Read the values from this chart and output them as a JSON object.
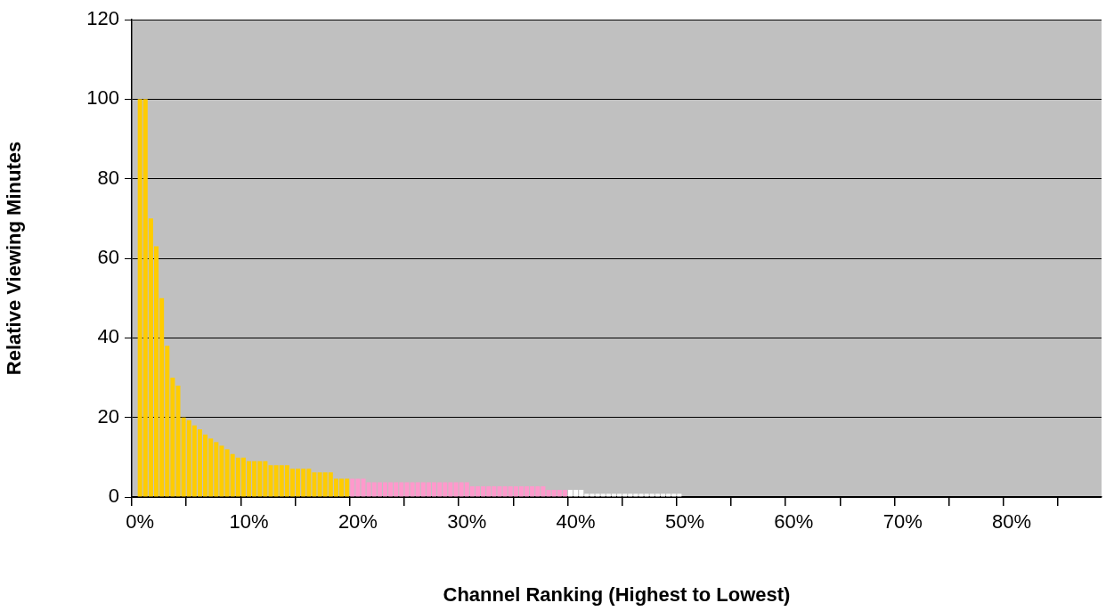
{
  "chart_data": {
    "type": "bar",
    "xlabel": "Channel Ranking (Highest to Lowest)",
    "ylabel": "Relative Viewing Minutes",
    "categories": [
      null,
      "0%",
      null,
      null,
      null,
      null,
      null,
      null,
      null,
      null,
      null,
      null,
      null,
      null,
      null,
      null,
      null,
      null,
      null,
      null,
      null,
      "10%",
      null,
      null,
      null,
      null,
      null,
      null,
      null,
      null,
      null,
      null,
      null,
      null,
      null,
      null,
      null,
      null,
      null,
      null,
      null,
      "20%",
      null,
      null,
      null,
      null,
      null,
      null,
      null,
      null,
      null,
      null,
      null,
      null,
      null,
      null,
      null,
      null,
      null,
      null,
      null,
      "30%",
      null,
      null,
      null,
      null,
      null,
      null,
      null,
      null,
      null,
      null,
      null,
      null,
      null,
      null,
      null,
      null,
      null,
      null,
      null,
      "40%",
      null,
      null,
      null,
      null,
      null,
      null,
      null,
      null,
      null,
      null,
      null,
      null,
      null,
      null,
      null,
      null,
      null,
      null,
      null,
      "50%",
      null,
      null,
      null,
      null,
      null,
      null,
      null,
      null,
      null,
      null,
      null,
      null,
      null,
      null,
      null,
      null,
      null,
      null,
      null,
      "60%",
      null,
      null,
      null,
      null,
      null,
      null,
      null,
      null,
      null,
      null,
      null,
      null,
      null,
      null,
      null,
      null,
      null,
      null,
      null,
      "70%",
      null,
      null,
      null,
      null,
      null,
      null,
      null,
      null,
      null,
      null,
      null,
      null,
      null,
      null,
      null,
      null,
      null,
      null,
      null,
      "80%",
      null,
      null,
      null,
      null,
      null,
      null,
      null,
      null,
      null,
      null,
      null,
      null,
      null,
      null,
      null,
      null
    ],
    "values": [
      null,
      100,
      100,
      70,
      63,
      50,
      38,
      30,
      28,
      20,
      19.3,
      18,
      17,
      15.7,
      14.7,
      13.8,
      12.9,
      12,
      10.8,
      9.9,
      9.9,
      9,
      9,
      9,
      9,
      8,
      8,
      8,
      8,
      7.1,
      7.1,
      7.1,
      7.1,
      6.2,
      6.2,
      6.2,
      6.2,
      4.6,
      4.6,
      4.6,
      4.6,
      4.6,
      4.6,
      3.7,
      3.7,
      3.7,
      3.7,
      3.7,
      3.7,
      3.7,
      3.7,
      3.7,
      3.7,
      3.7,
      3.7,
      3.7,
      3.7,
      3.7,
      3.7,
      3.7,
      3.7,
      3.7,
      2.7,
      2.7,
      2.7,
      2.7,
      2.7,
      2.7,
      2.7,
      2.7,
      2.7,
      2.7,
      2.7,
      2.7,
      2.7,
      2.7,
      1.8,
      1.8,
      1.8,
      1.8,
      1.8,
      1.8,
      1.8,
      0.8,
      0.8,
      0.8,
      0.8,
      0.8,
      0.8,
      0.8,
      0.8,
      0.8,
      0.8,
      0.8,
      0.8,
      0.8,
      0.8,
      0.8,
      0.8,
      0.8,
      0.8,
      null,
      null,
      null,
      null,
      null,
      null,
      null,
      null,
      null,
      null,
      null,
      null,
      null,
      null,
      null,
      null,
      null,
      null,
      null,
      null,
      null,
      null,
      null,
      null,
      null,
      null,
      null,
      null,
      null,
      null,
      null,
      null,
      null,
      null,
      null,
      null,
      null,
      null,
      null,
      null,
      null,
      null,
      null,
      null,
      null,
      null,
      null,
      null,
      null,
      null,
      null,
      null,
      null,
      null,
      null,
      null,
      null,
      null,
      null,
      null,
      null,
      null,
      null,
      null,
      null,
      null,
      null,
      null,
      null,
      null,
      null,
      null,
      null,
      null,
      null,
      null,
      null
    ],
    "colors": [
      null,
      "#ffcc00",
      "#ffcc00",
      "#ffcc00",
      "#ffcc00",
      "#ffcc00",
      "#ffcc00",
      "#ffcc00",
      "#ffcc00",
      "#ffcc00",
      "#ffcc00",
      "#ffcc00",
      "#ffcc00",
      "#ffcc00",
      "#ffcc00",
      "#ffcc00",
      "#ffcc00",
      "#ffcc00",
      "#ffcc00",
      "#ffcc00",
      "#ffcc00",
      "#ffcc00",
      "#ffcc00",
      "#ffcc00",
      "#ffcc00",
      "#ffcc00",
      "#ffcc00",
      "#ffcc00",
      "#ffcc00",
      "#ffcc00",
      "#ffcc00",
      "#ffcc00",
      "#ffcc00",
      "#ffcc00",
      "#ffcc00",
      "#ffcc00",
      "#ffcc00",
      "#ffcc00",
      "#ffcc00",
      "#ffcc00",
      "#ff99cc",
      "#ff99cc",
      "#ff99cc",
      "#ff99cc",
      "#ff99cc",
      "#ff99cc",
      "#ff99cc",
      "#ff99cc",
      "#ff99cc",
      "#ff99cc",
      "#ff99cc",
      "#ff99cc",
      "#ff99cc",
      "#ff99cc",
      "#ff99cc",
      "#ff99cc",
      "#ff99cc",
      "#ff99cc",
      "#ff99cc",
      "#ff99cc",
      "#ff99cc",
      "#ff99cc",
      "#ff99cc",
      "#ff99cc",
      "#ff99cc",
      "#ff99cc",
      "#ff99cc",
      "#ff99cc",
      "#ff99cc",
      "#ff99cc",
      "#ff99cc",
      "#ff99cc",
      "#ff99cc",
      "#ff99cc",
      "#ff99cc",
      "#ff99cc",
      "#ff99cc",
      "#ff99cc",
      "#ff99cc",
      "#ff99cc",
      "#ffffff",
      "#ffffff",
      "#ffffff",
      "#ffffff",
      "#ffffff",
      "#ffffff",
      "#ffffff",
      "#ffffff",
      "#ffffff",
      "#ffffff",
      "#ffffff",
      "#ffffff",
      "#ffffff",
      "#ffffff",
      "#ffffff",
      "#ffffff",
      "#ffffff",
      "#ffffff",
      "#ffffff",
      "#ffffff",
      "#ffffff",
      null,
      null,
      null,
      null,
      null,
      null,
      null,
      null,
      null,
      null,
      null,
      null,
      null,
      null,
      null,
      null,
      null,
      null,
      null,
      null,
      null,
      null,
      null,
      null,
      null,
      null,
      null,
      null,
      null,
      null,
      null,
      null,
      null,
      null,
      null,
      null,
      null,
      null,
      null,
      null,
      null,
      null,
      null,
      null,
      null,
      null,
      null,
      null,
      null,
      null,
      null,
      null,
      null,
      null,
      null,
      null,
      null,
      null,
      null,
      null,
      null,
      null,
      null,
      null,
      null,
      null,
      null,
      null,
      null,
      null,
      null,
      null,
      null,
      null,
      null,
      null,
      null
    ],
    "ylim": [
      0,
      120
    ],
    "yticks": [
      0,
      20,
      40,
      60,
      80,
      100,
      120
    ],
    "grid": "y",
    "legend": false
  }
}
